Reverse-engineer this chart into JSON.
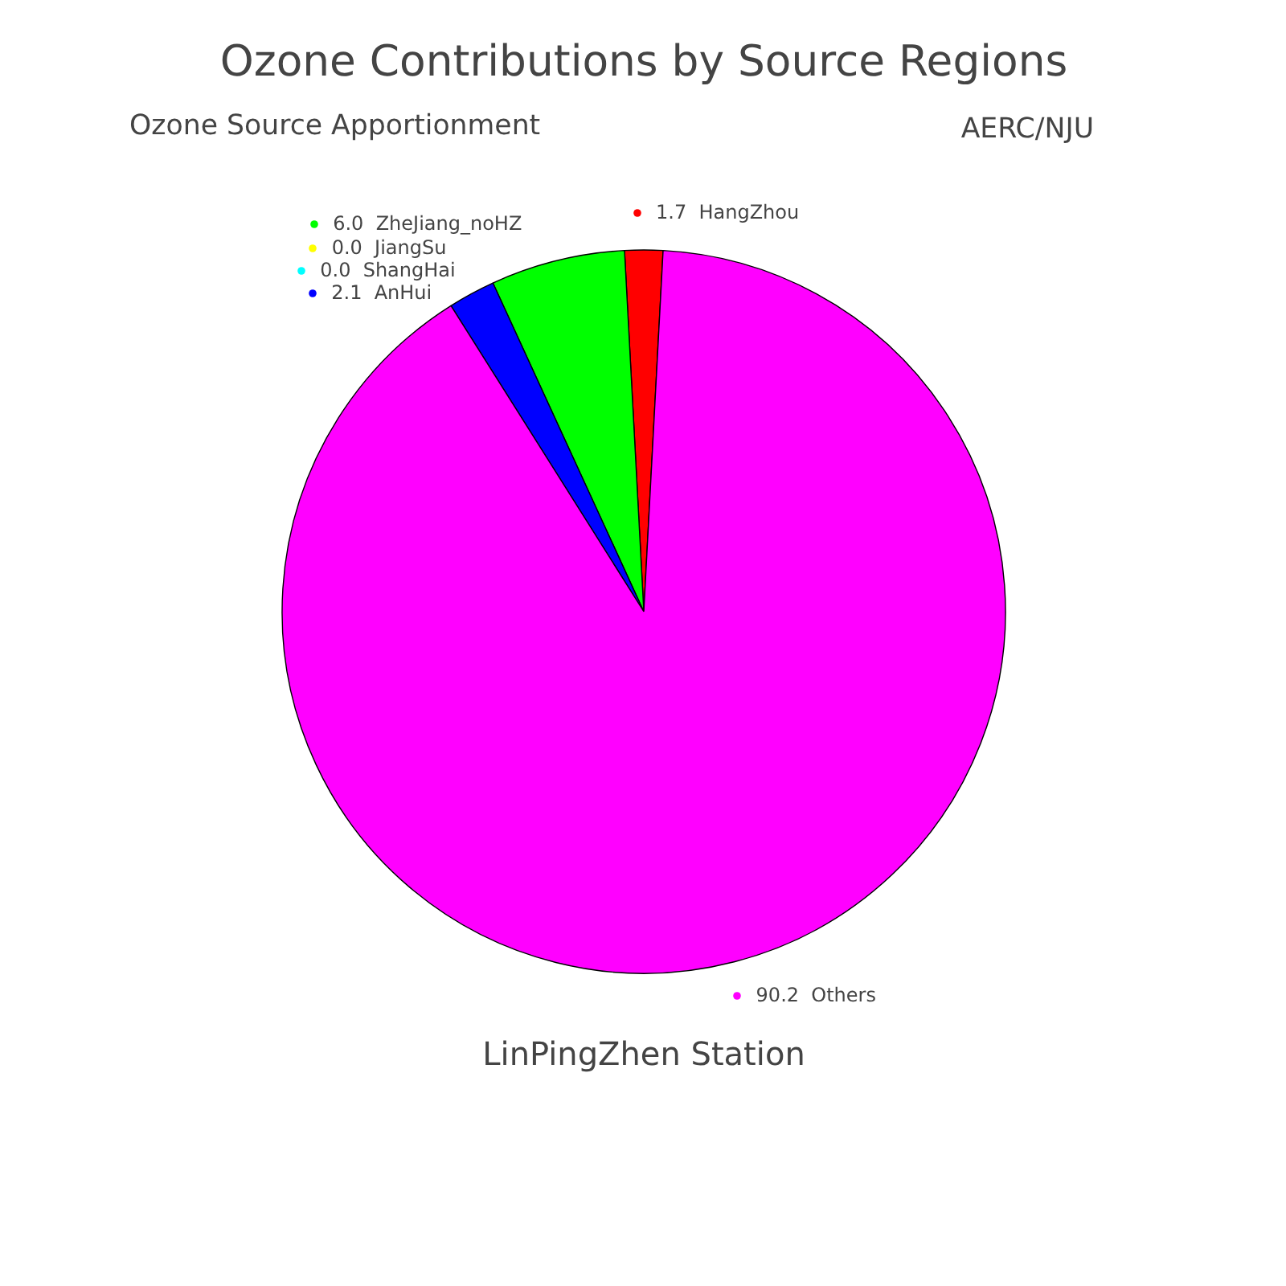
{
  "chart_data": {
    "type": "pie",
    "title": "Ozone Contributions by Source Regions",
    "subtitle": "Ozone Source Apportionment",
    "xlabel": "LinPingZhen Station",
    "annotations": [
      "AERC/NJU"
    ],
    "categories": [
      "HangZhou",
      "ZheJiang_noHZ",
      "JiangSu",
      "ShangHai",
      "AnHui",
      "Others"
    ],
    "values": [
      1.7,
      6.0,
      0.0,
      0.0,
      2.1,
      90.2
    ],
    "value_labels": [
      "1.7",
      "6.0",
      "0.0",
      "0.0",
      "2.1",
      "90.2"
    ],
    "colors": [
      "#ff0000",
      "#00ff00",
      "#ffff00",
      "#00ffff",
      "#0000ff",
      "#ff00ff"
    ],
    "legend": "top"
  }
}
